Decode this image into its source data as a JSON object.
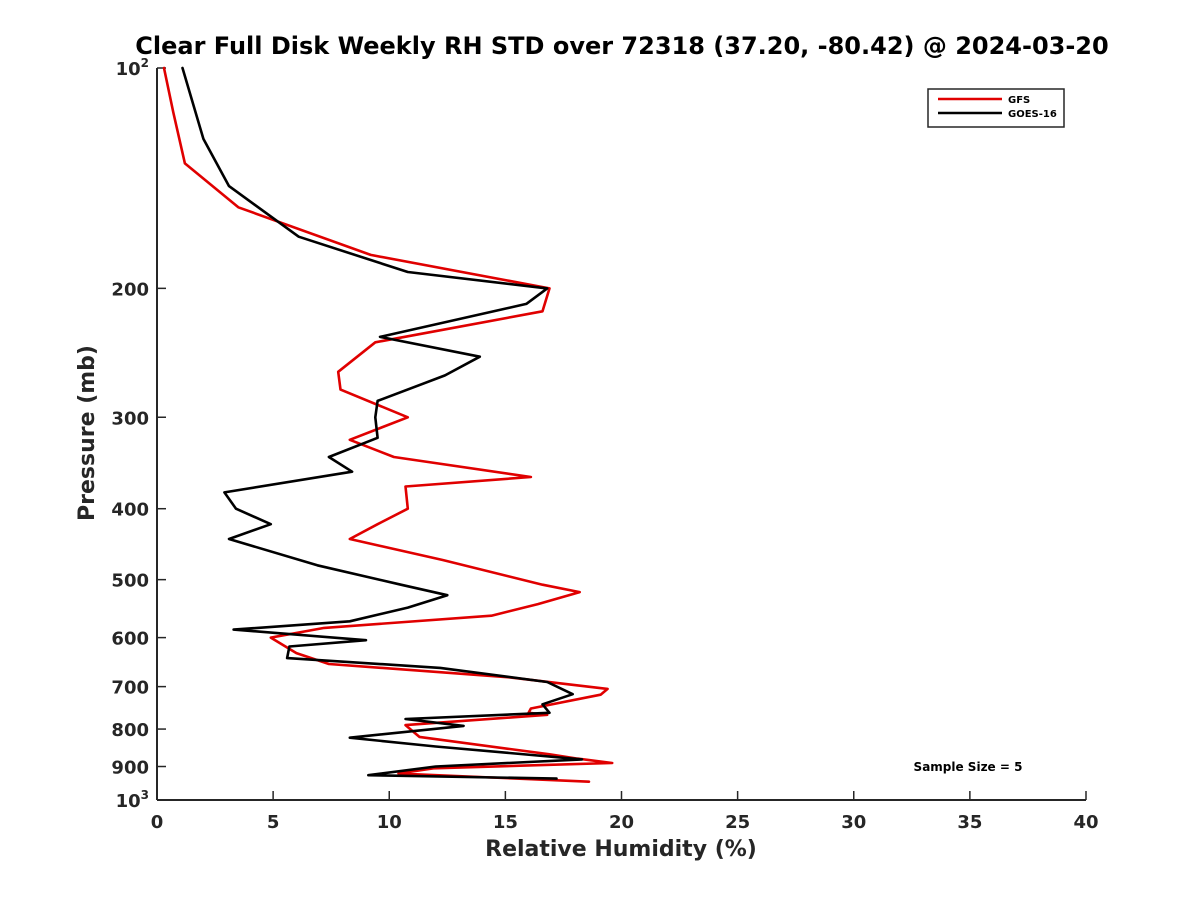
{
  "chart_data": {
    "type": "line",
    "title": "Clear Full Disk Weekly RH STD over 72318 (37.20, -80.42) @ 2024-03-20",
    "xlabel": "Relative Humidity (%)",
    "ylabel": "Pressure (mb)",
    "xlim": [
      0,
      40
    ],
    "ylim": [
      100,
      1000
    ],
    "y_scale": "log",
    "y_reversed": true,
    "x_ticks": [
      "0",
      "5",
      "10",
      "15",
      "20",
      "25",
      "30",
      "35",
      "40"
    ],
    "y_ticks": [
      {
        "value": 100,
        "base": "10",
        "exp": "2"
      },
      {
        "value": 200,
        "label": "200"
      },
      {
        "value": 300,
        "label": "300"
      },
      {
        "value": 400,
        "label": "400"
      },
      {
        "value": 500,
        "label": "500"
      },
      {
        "value": 600,
        "label": "600"
      },
      {
        "value": 700,
        "label": "700"
      },
      {
        "value": 800,
        "label": "800"
      },
      {
        "value": 900,
        "label": "900"
      },
      {
        "value": 1000,
        "base": "10",
        "exp": "3"
      }
    ],
    "grid": false,
    "legend": {
      "placement": "top-right"
    },
    "annotation": "Sample Size = 5",
    "series": [
      {
        "name": "GFS",
        "color": "#e00000",
        "points": [
          [
            0.3,
            100
          ],
          [
            0.7,
            115
          ],
          [
            1.2,
            135
          ],
          [
            3.5,
            155
          ],
          [
            9.2,
            180
          ],
          [
            16.9,
            200
          ],
          [
            16.6,
            215
          ],
          [
            9.4,
            237
          ],
          [
            7.8,
            260
          ],
          [
            7.9,
            275
          ],
          [
            10.8,
            300
          ],
          [
            8.3,
            322
          ],
          [
            10.2,
            340
          ],
          [
            16.1,
            362
          ],
          [
            10.7,
            373
          ],
          [
            10.8,
            400
          ],
          [
            9.5,
            420
          ],
          [
            8.3,
            440
          ],
          [
            12.3,
            470
          ],
          [
            16.6,
            508
          ],
          [
            18.2,
            520
          ],
          [
            16.4,
            540
          ],
          [
            14.4,
            560
          ],
          [
            7.2,
            582
          ],
          [
            4.9,
            600
          ],
          [
            6.0,
            630
          ],
          [
            7.4,
            652
          ],
          [
            15.2,
            680
          ],
          [
            19.4,
            705
          ],
          [
            19.1,
            718
          ],
          [
            16.1,
            750
          ],
          [
            16.0,
            760
          ],
          [
            16.8,
            765
          ],
          [
            10.7,
            790
          ],
          [
            11.3,
            820
          ],
          [
            16.9,
            866
          ],
          [
            18.1,
            878
          ],
          [
            19.6,
            890
          ],
          [
            11.9,
            905
          ],
          [
            10.4,
            920
          ],
          [
            18.6,
            944
          ]
        ]
      },
      {
        "name": "GOES-16",
        "color": "#000000",
        "points": [
          [
            1.1,
            100
          ],
          [
            2.0,
            125
          ],
          [
            3.1,
            145
          ],
          [
            6.1,
            170
          ],
          [
            10.8,
            190
          ],
          [
            16.8,
            200
          ],
          [
            15.9,
            210
          ],
          [
            9.6,
            233
          ],
          [
            13.9,
            248
          ],
          [
            12.4,
            263
          ],
          [
            9.5,
            285
          ],
          [
            9.4,
            300
          ],
          [
            9.5,
            320
          ],
          [
            7.4,
            340
          ],
          [
            8.4,
            356
          ],
          [
            2.9,
            380
          ],
          [
            3.4,
            400
          ],
          [
            4.9,
            420
          ],
          [
            3.1,
            440
          ],
          [
            6.9,
            478
          ],
          [
            10.5,
            508
          ],
          [
            12.5,
            525
          ],
          [
            10.8,
            546
          ],
          [
            8.3,
            570
          ],
          [
            3.3,
            585
          ],
          [
            9.0,
            605
          ],
          [
            5.7,
            617
          ],
          [
            5.6,
            640
          ],
          [
            12.2,
            660
          ],
          [
            16.8,
            690
          ],
          [
            17.9,
            717
          ],
          [
            16.6,
            740
          ],
          [
            16.9,
            760
          ],
          [
            10.7,
            775
          ],
          [
            13.2,
            792
          ],
          [
            8.3,
            822
          ],
          [
            12.0,
            845
          ],
          [
            18.3,
            880
          ],
          [
            12.0,
            900
          ],
          [
            9.1,
            925
          ],
          [
            17.2,
            935
          ]
        ]
      }
    ]
  }
}
